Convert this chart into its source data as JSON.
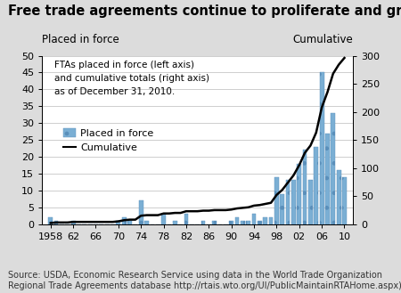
{
  "title": "Free trade agreements continue to proliferate and grow more important",
  "ylabel_left": "Placed in force",
  "ylabel_right": "Cumulative",
  "annotation": "FTAs placed in force (left axis)\nand cumulative totals (right axis)\nas of December 31, 2010.",
  "legend_bar": "Placed in force",
  "legend_line": "Cumulative",
  "source_text": "Source: USDA, Economic Research Service using data in the World Trade Organization\nRegional Trade Agreements database http://rtais.wto.org/UI/PublicMaintainRTAHome.aspx).",
  "years": [
    1958,
    1959,
    1960,
    1961,
    1962,
    1963,
    1964,
    1965,
    1966,
    1967,
    1968,
    1969,
    1970,
    1971,
    1972,
    1973,
    1974,
    1975,
    1976,
    1977,
    1978,
    1979,
    1980,
    1981,
    1982,
    1983,
    1984,
    1985,
    1986,
    1987,
    1988,
    1989,
    1990,
    1991,
    1992,
    1993,
    1994,
    1995,
    1996,
    1997,
    1998,
    1999,
    2000,
    2001,
    2002,
    2003,
    2004,
    2005,
    2006,
    2007,
    2008,
    2009,
    2010
  ],
  "placed_in_force": [
    2,
    1,
    0,
    0,
    1,
    0,
    0,
    0,
    0,
    0,
    0,
    0,
    1,
    2,
    1,
    0,
    7,
    1,
    0,
    0,
    3,
    0,
    1,
    0,
    3,
    0,
    0,
    1,
    0,
    1,
    0,
    0,
    1,
    2,
    1,
    1,
    3,
    1,
    2,
    2,
    14,
    9,
    13,
    13,
    18,
    22,
    13,
    23,
    45,
    27,
    33,
    16,
    14
  ],
  "cumulative": [
    2,
    3,
    3,
    3,
    4,
    4,
    4,
    4,
    4,
    4,
    4,
    4,
    5,
    7,
    8,
    8,
    15,
    16,
    16,
    16,
    19,
    19,
    20,
    20,
    23,
    23,
    23,
    24,
    24,
    25,
    25,
    25,
    26,
    28,
    29,
    30,
    33,
    34,
    36,
    38,
    52,
    61,
    74,
    87,
    105,
    127,
    140,
    163,
    208,
    235,
    268,
    284,
    296
  ],
  "bar_color": "#7bafd4",
  "bar_edgecolor": "#5a8fba",
  "line_color": "#000000",
  "ylim_left": [
    0,
    50
  ],
  "ylim_right": [
    0,
    300
  ],
  "yticks_left": [
    0,
    5,
    10,
    15,
    20,
    25,
    30,
    35,
    40,
    45,
    50
  ],
  "yticks_right": [
    0,
    50,
    100,
    150,
    200,
    250,
    300
  ],
  "xtick_labels": [
    "1958",
    "62",
    "66",
    "70",
    "74",
    "78",
    "82",
    "86",
    "90",
    "94",
    "98",
    "02",
    "06",
    "10"
  ],
  "xtick_positions": [
    1958,
    1962,
    1966,
    1970,
    1974,
    1978,
    1982,
    1986,
    1990,
    1994,
    1998,
    2002,
    2006,
    2010
  ],
  "xlim": [
    1956.5,
    2011.5
  ],
  "bg_color": "#dcdcdc",
  "plot_bg_color": "#ffffff",
  "title_fontsize": 10.5,
  "axis_fontsize": 8.5,
  "tick_fontsize": 8,
  "annotation_fontsize": 7.5,
  "source_fontsize": 7.0
}
